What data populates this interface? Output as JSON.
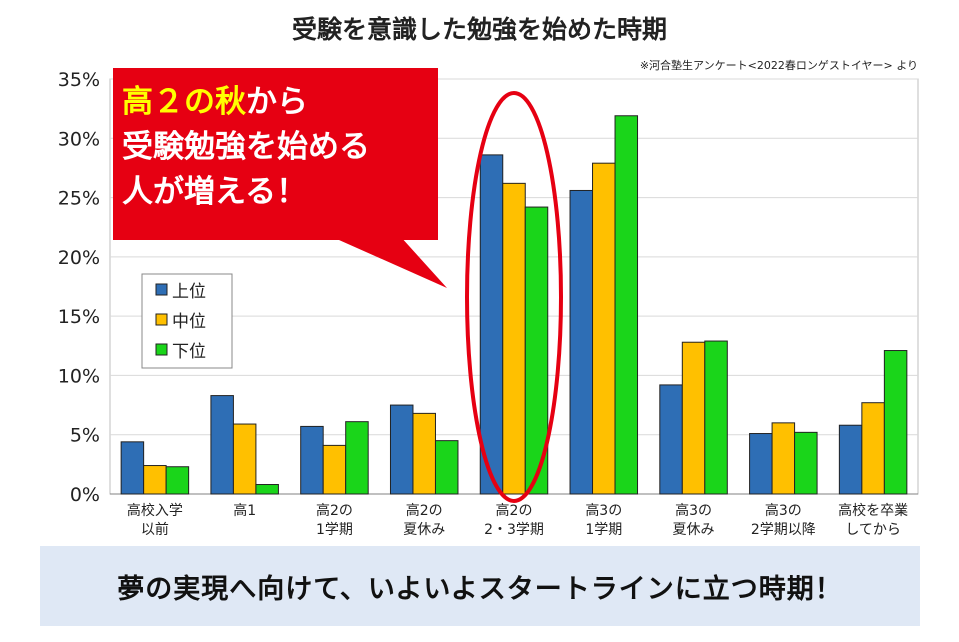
{
  "chart_data": {
    "type": "bar",
    "title": "受験を意識した勉強を始めた時期",
    "source_note": "※河合塾生アンケート<2022春ロンゲストイヤー> より",
    "categories": [
      [
        "高校入学",
        "以前"
      ],
      [
        "高1"
      ],
      [
        "高2の",
        "1学期"
      ],
      [
        "高2の",
        "夏休み"
      ],
      [
        "高2の",
        "2・3学期"
      ],
      [
        "高3の",
        "1学期"
      ],
      [
        "高3の",
        "夏休み"
      ],
      [
        "高3の",
        "2学期以降"
      ],
      [
        "高校を卒業",
        "してから"
      ]
    ],
    "series": [
      {
        "name": "上位",
        "color": "#2e6eb5",
        "values": [
          4.4,
          8.3,
          5.7,
          7.5,
          28.6,
          25.6,
          9.2,
          5.1,
          5.8
        ]
      },
      {
        "name": "中位",
        "color": "#ffc000",
        "values": [
          2.4,
          5.9,
          4.1,
          6.8,
          26.2,
          27.9,
          12.8,
          6.0,
          7.7
        ]
      },
      {
        "name": "下位",
        "color": "#1ad51a",
        "values": [
          2.3,
          0.8,
          6.1,
          4.5,
          24.2,
          31.9,
          12.9,
          5.2,
          12.1
        ]
      }
    ],
    "ylim": [
      0,
      35
    ],
    "yticks": [
      "0%",
      "5%",
      "10%",
      "15%",
      "20%",
      "25%",
      "30%",
      "35%"
    ],
    "ytick_values": [
      0,
      5,
      10,
      15,
      20,
      25,
      30,
      35
    ],
    "grid": true,
    "legend": "left"
  },
  "callout": {
    "highlight": "高２の秋",
    "line1_rest": "から",
    "line2": "受験勉強を始める",
    "line3": "人が増える！",
    "bg_color": "#e60012",
    "highlight_color": "#ffff00"
  },
  "banner_text": "夢の実現へ向けて、いよいよスタートラインに立つ時期！",
  "highlight_category_index": 4
}
